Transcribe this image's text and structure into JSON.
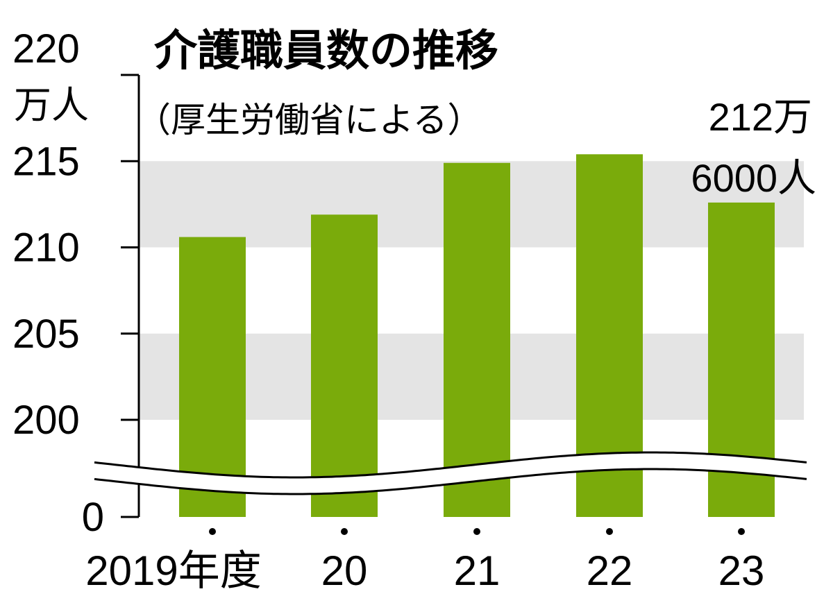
{
  "title": "介護職員数の推移",
  "subtitle": "（厚生労働省による）",
  "chart_data": {
    "type": "bar",
    "title": "介護職員数の推移",
    "subtitle": "（厚生労働省による）",
    "unit": "万人",
    "categories": [
      "2019年度",
      "20",
      "21",
      "22",
      "23"
    ],
    "values": [
      210.6,
      211.9,
      214.9,
      215.4,
      212.6
    ],
    "y_ticks": [
      "220",
      "215",
      "210",
      "205",
      "200",
      "0"
    ],
    "ylim": [
      200,
      220
    ],
    "axis_break": "0から200の間を省略",
    "annotation": {
      "line1": "212万",
      "line2": "6000人",
      "category": "23"
    },
    "colors": {
      "bar": "#7aab0b",
      "band": "#e4e4e4",
      "axis": "#000000"
    },
    "grid_bands": [
      [
        200,
        205
      ],
      [
        210,
        215
      ]
    ]
  }
}
